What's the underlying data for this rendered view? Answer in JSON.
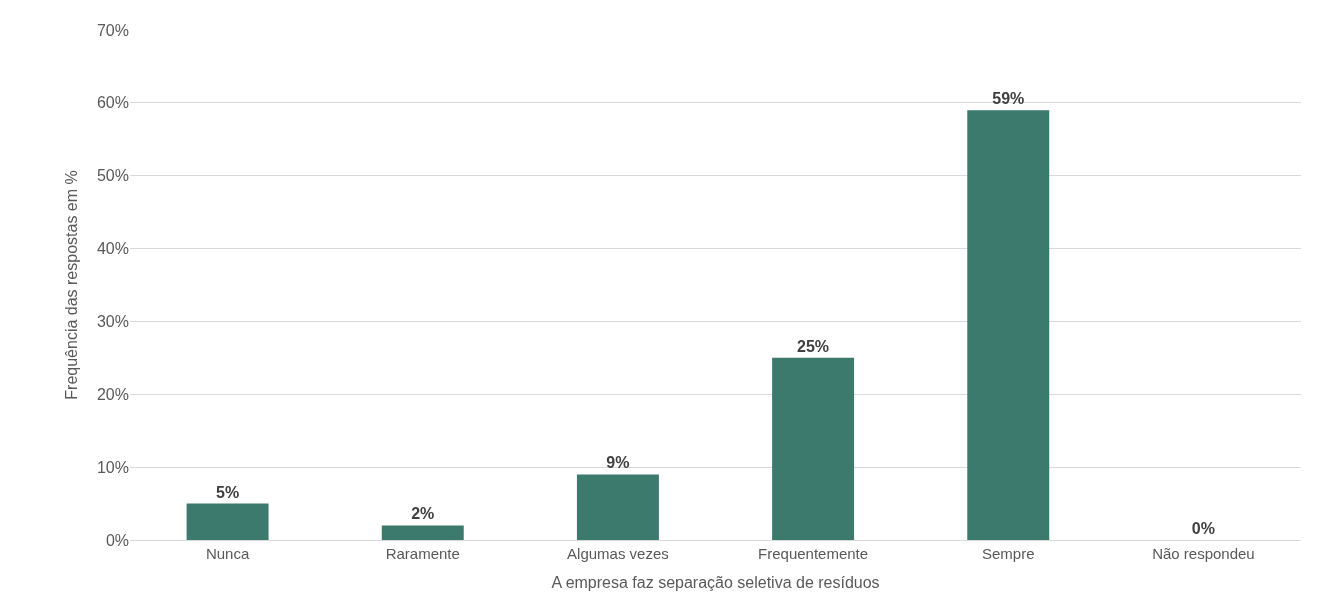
{
  "chart_data": {
    "type": "bar",
    "xlabel": "A empresa faz separação seletiva de resíduos",
    "ylabel": "Frequência das respostas em %",
    "categories": [
      "Nunca",
      "Raramente",
      "Algumas vezes",
      "Frequentemente",
      "Sempre",
      "Não respondeu"
    ],
    "values": [
      5,
      2,
      9,
      25,
      59,
      0
    ],
    "value_labels": [
      "5%",
      "2%",
      "9%",
      "25%",
      "59%",
      "0%"
    ],
    "color": "#3b7a6c",
    "ylim": [
      0,
      70
    ],
    "yticks": [
      {
        "value": 0,
        "label": "0%"
      },
      {
        "value": 10,
        "label": "10%"
      },
      {
        "value": 20,
        "label": "20%"
      },
      {
        "value": 30,
        "label": "30%"
      },
      {
        "value": 40,
        "label": "40%"
      },
      {
        "value": 50,
        "label": "50%"
      },
      {
        "value": 60,
        "label": "60%"
      },
      {
        "value": 70,
        "label": "70%"
      }
    ],
    "grid": "y"
  }
}
